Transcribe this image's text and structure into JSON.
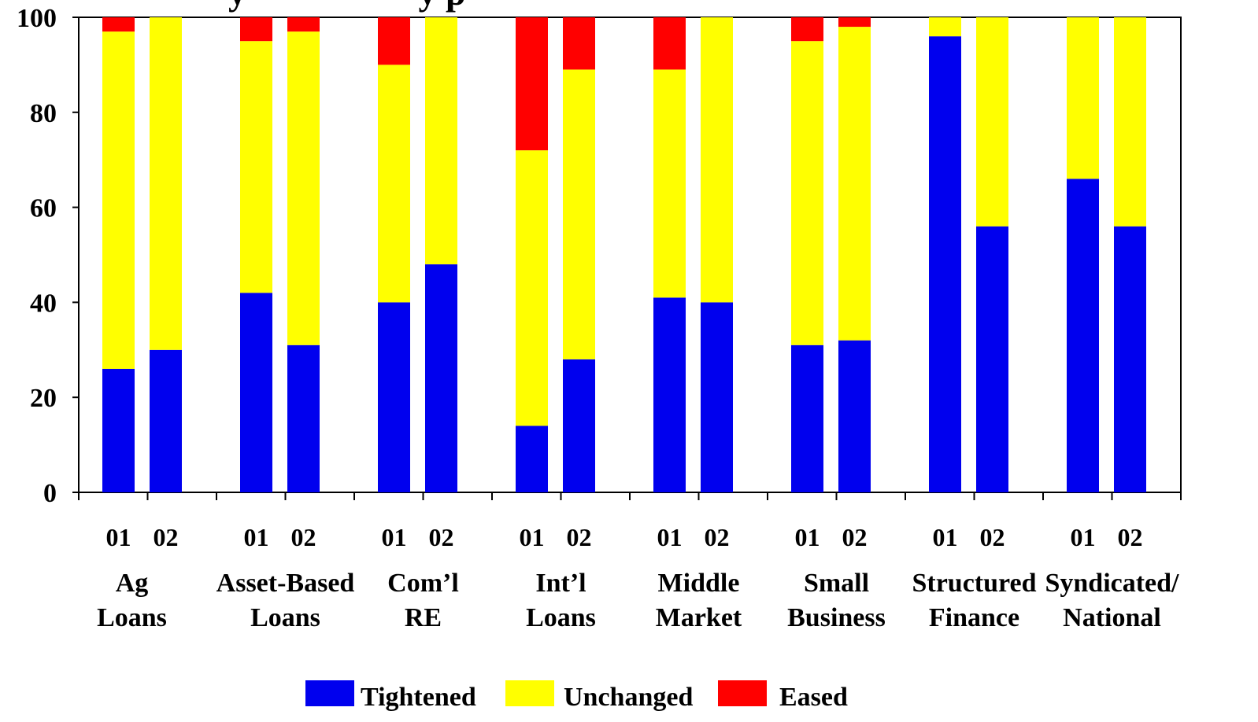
{
  "chart_data": {
    "type": "bar",
    "stacked": true,
    "title_fragment": "y                   y p",
    "ylim": [
      0,
      100
    ],
    "yticks": [
      0,
      20,
      40,
      60,
      80,
      100
    ],
    "groups": [
      {
        "label": [
          "Ag",
          "Loans"
        ],
        "years": [
          "01",
          "02"
        ]
      },
      {
        "label": [
          "Asset-Based",
          "Loans"
        ],
        "years": [
          "01",
          "02"
        ]
      },
      {
        "label": [
          "Com’l",
          "RE"
        ],
        "years": [
          "01",
          "02"
        ]
      },
      {
        "label": [
          "Int’l",
          "Loans"
        ],
        "years": [
          "01",
          "02"
        ]
      },
      {
        "label": [
          "Middle",
          "Market"
        ],
        "years": [
          "01",
          "02"
        ]
      },
      {
        "label": [
          "Small",
          "Business"
        ],
        "years": [
          "01",
          "02"
        ]
      },
      {
        "label": [
          "Structured",
          "Finance"
        ],
        "years": [
          "01",
          "02"
        ]
      },
      {
        "label": [
          "Syndicated/",
          "National"
        ],
        "years": [
          "01",
          "02"
        ]
      }
    ],
    "series": [
      {
        "name": "Tightened",
        "color": "#0000ee",
        "values": [
          26,
          30,
          42,
          31,
          40,
          48,
          14,
          28,
          41,
          40,
          31,
          32,
          96,
          56,
          66,
          56
        ]
      },
      {
        "name": "Unchanged",
        "color": "#ffff00",
        "values": [
          71,
          70,
          53,
          66,
          50,
          52,
          58,
          61,
          48,
          60,
          64,
          66,
          4,
          44,
          34,
          44
        ]
      },
      {
        "name": "Eased",
        "color": "#ff0000",
        "values": [
          3,
          0,
          5,
          3,
          10,
          0,
          28,
          11,
          11,
          0,
          5,
          2,
          0,
          0,
          0,
          0
        ]
      }
    ],
    "legend_position": "bottom",
    "grid": false
  }
}
